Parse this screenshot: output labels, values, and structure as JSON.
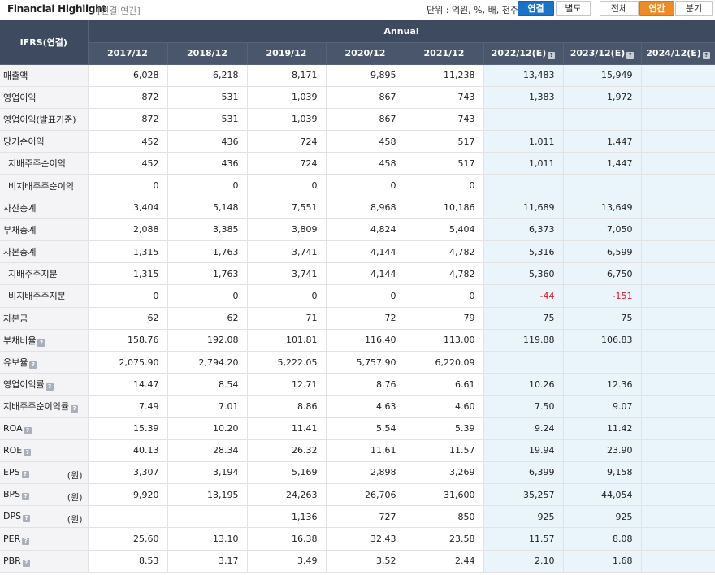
{
  "header": {
    "title": "Financial Highlight",
    "subtitle": "[연결|연간]",
    "unit_text": "단위 : 억원, %, 배, 천주",
    "consolidation_buttons": [
      "연결",
      "별도"
    ],
    "period_buttons": [
      "전체",
      "연간",
      "분기"
    ]
  },
  "table": {
    "corner_label": "IFRS(연결)",
    "group_label": "Annual",
    "years": [
      "2017/12",
      "2018/12",
      "2019/12",
      "2020/12",
      "2021/12",
      "2022/12(E)",
      "2023/12(E)",
      "2024/12(E)"
    ],
    "rows": [
      {
        "label": "매출액",
        "values": [
          "6,028",
          "6,218",
          "8,171",
          "9,895",
          "11,238",
          "13,483",
          "15,949",
          ""
        ]
      },
      {
        "label": "영업이익",
        "values": [
          "872",
          "531",
          "1,039",
          "867",
          "743",
          "1,383",
          "1,972",
          ""
        ]
      },
      {
        "label": "영업이익(발표기준)",
        "values": [
          "872",
          "531",
          "1,039",
          "867",
          "743",
          "",
          "",
          ""
        ]
      },
      {
        "label": "당기순이익",
        "values": [
          "452",
          "436",
          "724",
          "458",
          "517",
          "1,011",
          "1,447",
          ""
        ]
      },
      {
        "label": "지배주주순이익",
        "sub": true,
        "values": [
          "452",
          "436",
          "724",
          "458",
          "517",
          "1,011",
          "1,447",
          ""
        ]
      },
      {
        "label": "비지배주주순이익",
        "sub": true,
        "values": [
          "0",
          "0",
          "0",
          "0",
          "0",
          "",
          "",
          ""
        ]
      },
      {
        "label": "자산총계",
        "values": [
          "3,404",
          "5,148",
          "7,551",
          "8,968",
          "10,186",
          "11,689",
          "13,649",
          ""
        ]
      },
      {
        "label": "부채총계",
        "values": [
          "2,088",
          "3,385",
          "3,809",
          "4,824",
          "5,404",
          "6,373",
          "7,050",
          ""
        ]
      },
      {
        "label": "자본총계",
        "values": [
          "1,315",
          "1,763",
          "3,741",
          "4,144",
          "4,782",
          "5,316",
          "6,599",
          ""
        ]
      },
      {
        "label": "지배주주지분",
        "sub": true,
        "values": [
          "1,315",
          "1,763",
          "3,741",
          "4,144",
          "4,782",
          "5,360",
          "6,750",
          ""
        ]
      },
      {
        "label": "비지배주주지분",
        "sub": true,
        "values": [
          "0",
          "0",
          "0",
          "0",
          "0",
          "-44",
          "-151",
          ""
        ]
      },
      {
        "label": "자본금",
        "values": [
          "62",
          "62",
          "71",
          "72",
          "79",
          "75",
          "75",
          ""
        ]
      },
      {
        "label": "부채비율",
        "help": true,
        "values": [
          "158.76",
          "192.08",
          "101.81",
          "116.40",
          "113.00",
          "119.88",
          "106.83",
          ""
        ]
      },
      {
        "label": "유보율",
        "help": true,
        "values": [
          "2,075.90",
          "2,794.20",
          "5,222.05",
          "5,757.90",
          "6,220.09",
          "",
          "",
          ""
        ]
      },
      {
        "label": "영업이익률",
        "help": true,
        "values": [
          "14.47",
          "8.54",
          "12.71",
          "8.76",
          "6.61",
          "10.26",
          "12.36",
          ""
        ]
      },
      {
        "label": "지배주주순이익률",
        "help": true,
        "values": [
          "7.49",
          "7.01",
          "8.86",
          "4.63",
          "4.60",
          "7.50",
          "9.07",
          ""
        ]
      },
      {
        "label": "ROA",
        "help": true,
        "values": [
          "15.39",
          "10.20",
          "11.41",
          "5.54",
          "5.39",
          "9.24",
          "11.42",
          ""
        ]
      },
      {
        "label": "ROE",
        "help": true,
        "values": [
          "40.13",
          "28.34",
          "26.32",
          "11.61",
          "11.57",
          "19.94",
          "23.90",
          ""
        ]
      },
      {
        "label": "EPS",
        "help": true,
        "unit": "(원)",
        "values": [
          "3,307",
          "3,194",
          "5,169",
          "2,898",
          "3,269",
          "6,399",
          "9,158",
          ""
        ]
      },
      {
        "label": "BPS",
        "help": true,
        "unit": "(원)",
        "values": [
          "9,920",
          "13,195",
          "24,263",
          "26,706",
          "31,600",
          "35,257",
          "44,054",
          ""
        ]
      },
      {
        "label": "DPS",
        "help": true,
        "unit": "(원)",
        "values": [
          "",
          "",
          "1,136",
          "727",
          "850",
          "925",
          "925",
          ""
        ]
      },
      {
        "label": "PER",
        "help": true,
        "values": [
          "25.60",
          "13.10",
          "16.38",
          "32.43",
          "23.58",
          "11.57",
          "8.08",
          ""
        ]
      },
      {
        "label": "PBR",
        "help": true,
        "values": [
          "8.53",
          "3.17",
          "3.49",
          "3.52",
          "2.44",
          "2.10",
          "1.68",
          ""
        ]
      }
    ]
  }
}
